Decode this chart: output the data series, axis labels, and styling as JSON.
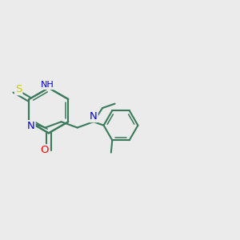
{
  "background_color": "#ebebeb",
  "bond_color": "#3a7a5a",
  "bond_width": 1.5,
  "atom_colors": {
    "N": "#0000ee",
    "O": "#ff0000",
    "S": "#cccc00",
    "H": "#777777",
    "C": "#3a7a5a"
  },
  "font_size": 8.5,
  "figsize": [
    3.0,
    3.0
  ],
  "dpi": 100,
  "xlim": [
    0,
    10
  ],
  "ylim": [
    0,
    10
  ]
}
